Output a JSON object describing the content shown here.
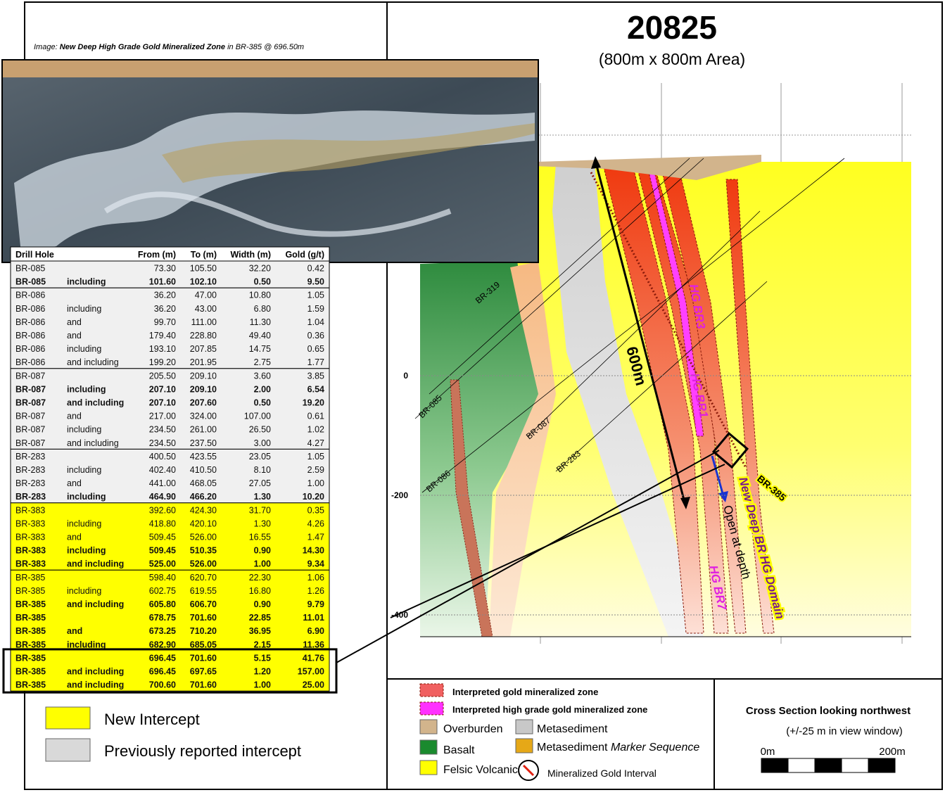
{
  "title": "20825",
  "subtitle": "(800m x 800m Area)",
  "caption": {
    "label": "Image:",
    "title": "New Deep High Grade Gold Mineralized Zone",
    "text": "in BR-385 @ 696.50m"
  },
  "table": {
    "header": [
      "Drill Hole",
      "From (m)",
      "To (m)",
      "Width (m)",
      "Gold (g/t)"
    ],
    "status_colors": {
      "previous": "#f0f0f0",
      "new": "#ffff00"
    },
    "groups": [
      {
        "status": "previous",
        "rows": [
          {
            "bold": false,
            "cells": [
              "BR-085",
              "",
              "73.30",
              "105.50",
              "32.20",
              "0.42"
            ]
          },
          {
            "bold": true,
            "cells": [
              "BR-085",
              "including",
              "101.60",
              "102.10",
              "0.50",
              "9.50"
            ]
          }
        ]
      },
      {
        "status": "previous",
        "rows": [
          {
            "bold": false,
            "cells": [
              "BR-086",
              "",
              "36.20",
              "47.00",
              "10.80",
              "1.05"
            ]
          },
          {
            "bold": false,
            "cells": [
              "BR-086",
              "including",
              "36.20",
              "43.00",
              "6.80",
              "1.59"
            ]
          },
          {
            "bold": false,
            "cells": [
              "BR-086",
              "and",
              "99.70",
              "111.00",
              "11.30",
              "1.04"
            ]
          },
          {
            "bold": false,
            "cells": [
              "BR-086",
              "and",
              "179.40",
              "228.80",
              "49.40",
              "0.36"
            ]
          },
          {
            "bold": false,
            "cells": [
              "BR-086",
              "including",
              "193.10",
              "207.85",
              "14.75",
              "0.65"
            ]
          },
          {
            "bold": false,
            "cells": [
              "BR-086",
              "and including",
              "199.20",
              "201.95",
              "2.75",
              "1.77"
            ]
          }
        ]
      },
      {
        "status": "previous",
        "rows": [
          {
            "bold": false,
            "cells": [
              "BR-087",
              "",
              "205.50",
              "209.10",
              "3.60",
              "3.85"
            ]
          },
          {
            "bold": true,
            "cells": [
              "BR-087",
              "including",
              "207.10",
              "209.10",
              "2.00",
              "6.54"
            ]
          },
          {
            "bold": true,
            "cells": [
              "BR-087",
              "and including",
              "207.10",
              "207.60",
              "0.50",
              "19.20"
            ]
          },
          {
            "bold": false,
            "cells": [
              "BR-087",
              "and",
              "217.00",
              "324.00",
              "107.00",
              "0.61"
            ]
          },
          {
            "bold": false,
            "cells": [
              "BR-087",
              "including",
              "234.50",
              "261.00",
              "26.50",
              "1.02"
            ]
          },
          {
            "bold": false,
            "cells": [
              "BR-087",
              "and including",
              "234.50",
              "237.50",
              "3.00",
              "4.27"
            ]
          }
        ]
      },
      {
        "status": "previous",
        "rows": [
          {
            "bold": false,
            "cells": [
              "BR-283",
              "",
              "400.50",
              "423.55",
              "23.05",
              "1.05"
            ]
          },
          {
            "bold": false,
            "cells": [
              "BR-283",
              "including",
              "402.40",
              "410.50",
              "8.10",
              "2.59"
            ]
          },
          {
            "bold": false,
            "cells": [
              "BR-283",
              "and",
              "441.00",
              "468.05",
              "27.05",
              "1.00"
            ]
          },
          {
            "bold": true,
            "cells": [
              "BR-283",
              "including",
              "464.90",
              "466.20",
              "1.30",
              "10.20"
            ]
          }
        ]
      },
      {
        "status": "new",
        "rows": [
          {
            "bold": false,
            "cells": [
              "BR-383",
              "",
              "392.60",
              "424.30",
              "31.70",
              "0.35"
            ]
          },
          {
            "bold": false,
            "cells": [
              "BR-383",
              "including",
              "418.80",
              "420.10",
              "1.30",
              "4.26"
            ]
          },
          {
            "bold": false,
            "cells": [
              "BR-383",
              "and",
              "509.45",
              "526.00",
              "16.55",
              "1.47"
            ]
          },
          {
            "bold": true,
            "cells": [
              "BR-383",
              "including",
              "509.45",
              "510.35",
              "0.90",
              "14.30"
            ]
          },
          {
            "bold": true,
            "cells": [
              "BR-383",
              "and including",
              "525.00",
              "526.00",
              "1.00",
              "9.34"
            ]
          }
        ]
      },
      {
        "status": "new",
        "rows": [
          {
            "bold": false,
            "cells": [
              "BR-385",
              "",
              "598.40",
              "620.70",
              "22.30",
              "1.06"
            ]
          },
          {
            "bold": false,
            "cells": [
              "BR-385",
              "including",
              "602.75",
              "619.55",
              "16.80",
              "1.26"
            ]
          },
          {
            "bold": true,
            "cells": [
              "BR-385",
              "and including",
              "605.80",
              "606.70",
              "0.90",
              "9.79"
            ]
          },
          {
            "bold": true,
            "cells": [
              "BR-385",
              "",
              "678.75",
              "701.60",
              "22.85",
              "11.01"
            ]
          },
          {
            "bold": true,
            "cells": [
              "BR-385",
              "and",
              "673.25",
              "710.20",
              "36.95",
              "6.90"
            ]
          },
          {
            "bold": true,
            "cells": [
              "BR-385",
              "including",
              "682.90",
              "685.05",
              "2.15",
              "11.36"
            ]
          },
          {
            "bold": true,
            "cells": [
              "BR-385",
              "",
              "696.45",
              "701.60",
              "5.15",
              "41.76"
            ]
          },
          {
            "bold": true,
            "cells": [
              "BR-385",
              "and including",
              "696.45",
              "697.65",
              "1.20",
              "157.00"
            ]
          },
          {
            "bold": true,
            "cells": [
              "BR-385",
              "and including",
              "700.60",
              "701.60",
              "1.00",
              "25.00"
            ]
          }
        ]
      }
    ]
  },
  "intercept_legend": {
    "new": "New Intercept",
    "previous": "Previously reported  intercept"
  },
  "section": {
    "elevation_ticks": [
      0,
      -200,
      -400
    ],
    "holes": [
      "BR-319",
      "BR-085",
      "BR-086",
      "BR-087",
      "BR-283",
      "BR-385"
    ],
    "zones": [
      "HG BR3",
      "HG BR1",
      "HG BR7"
    ],
    "domain": "New Deep BR HG Domain",
    "open": "Open at depth",
    "length": "600m"
  },
  "legend": {
    "gold_zone": "Interpreted gold mineralized zone",
    "hg_zone": "Interpreted high grade gold mineralized zone",
    "overburden": "Overburden",
    "metasediment": "Metasediment",
    "basalt": "Basalt",
    "marker": {
      "base": "Metasediment",
      "italic": "Marker Sequence"
    },
    "felsic": "Felsic Volcanic",
    "interval": "Mineralized Gold Interval"
  },
  "view": {
    "title": "Cross Section looking northwest",
    "window": "(+/-25 m in view window)",
    "scale_start": "0m",
    "scale_end": "200m"
  }
}
